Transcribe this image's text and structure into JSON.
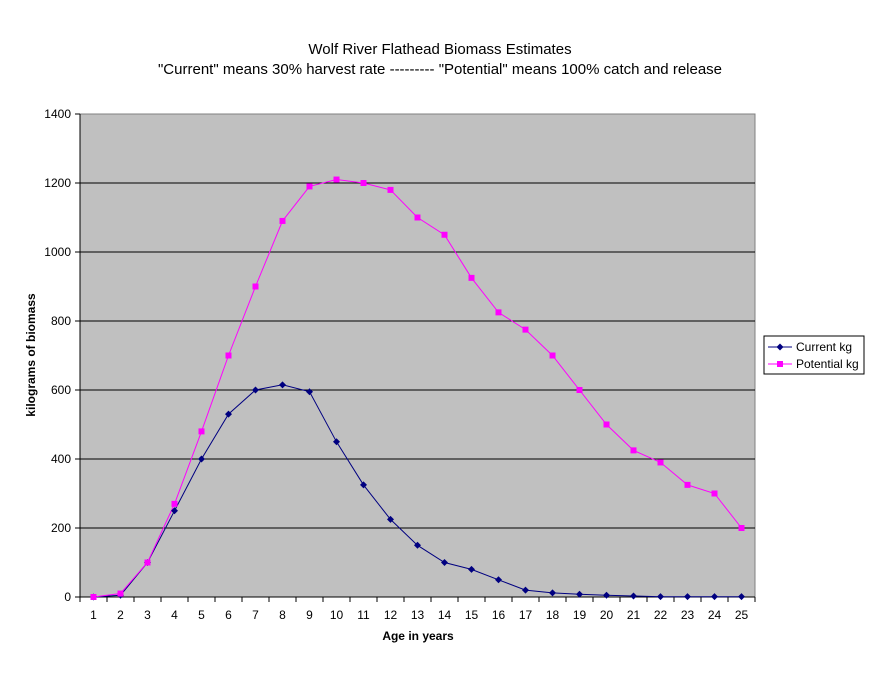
{
  "chart_data": {
    "type": "line",
    "title": "Wolf River Flathead Biomass Estimates",
    "subtitle": "\"Current\" means 30% harvest rate --------- \"Potential\" means 100% catch and release",
    "xlabel": "Age in years",
    "ylabel": "kilograms of biomass",
    "ylim": [
      0,
      1400
    ],
    "yticks": [
      0,
      200,
      400,
      600,
      800,
      1000,
      1200,
      1400
    ],
    "grid": "horizontal major gridlines",
    "plot_background": "#c0c0c0",
    "legend_position": "right",
    "categories": [
      "1",
      "2",
      "3",
      "4",
      "5",
      "6",
      "7",
      "8",
      "9",
      "10",
      "11",
      "12",
      "13",
      "14",
      "15",
      "16",
      "17",
      "18",
      "19",
      "20",
      "21",
      "22",
      "23",
      "24",
      "25"
    ],
    "series": [
      {
        "name": "Current kg",
        "color": "#000080",
        "marker": "diamond",
        "values": [
          0,
          5,
          100,
          250,
          400,
          530,
          600,
          615,
          595,
          450,
          325,
          225,
          150,
          100,
          80,
          50,
          20,
          12,
          8,
          5,
          3,
          1,
          1,
          1,
          1
        ]
      },
      {
        "name": "Potential kg",
        "color": "#ff00ff",
        "marker": "square",
        "values": [
          0,
          10,
          100,
          270,
          480,
          700,
          900,
          1090,
          1190,
          1210,
          1200,
          1180,
          1100,
          1050,
          925,
          825,
          775,
          700,
          600,
          500,
          425,
          390,
          325,
          300,
          200
        ]
      }
    ]
  }
}
